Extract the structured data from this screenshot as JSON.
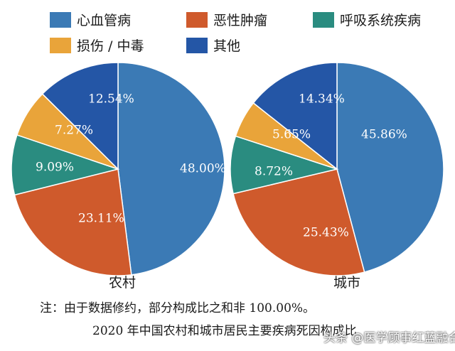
{
  "legend": [
    {
      "label": "心血管病",
      "color": "#3b7ab5"
    },
    {
      "label": "恶性肿瘤",
      "color": "#cf5a2c"
    },
    {
      "label": "呼吸系统疾病",
      "color": "#2a8c80"
    },
    {
      "label": "损伤 / 中毒",
      "color": "#e9a43a"
    },
    {
      "label": "其他",
      "color": "#2456a6"
    }
  ],
  "chart_data": [
    {
      "type": "pie",
      "title": "农村",
      "slices": [
        {
          "name": "心血管病",
          "value": 48.0,
          "label": "48.00%",
          "color": "#3b7ab5"
        },
        {
          "name": "恶性肿瘤",
          "value": 23.11,
          "label": "23.11%",
          "color": "#cf5a2c"
        },
        {
          "name": "呼吸系统疾病",
          "value": 9.09,
          "label": "9.09%",
          "color": "#2a8c80"
        },
        {
          "name": "损伤 / 中毒",
          "value": 7.27,
          "label": "7.27%",
          "color": "#e9a43a"
        },
        {
          "name": "其他",
          "value": 12.54,
          "label": "12.54%",
          "color": "#2456a6"
        }
      ]
    },
    {
      "type": "pie",
      "title": "城市",
      "slices": [
        {
          "name": "心血管病",
          "value": 45.86,
          "label": "45.86%",
          "color": "#3b7ab5"
        },
        {
          "name": "恶性肿瘤",
          "value": 25.43,
          "label": "25.43%",
          "color": "#cf5a2c"
        },
        {
          "name": "呼吸系统疾病",
          "value": 8.72,
          "label": "8.72%",
          "color": "#2a8c80"
        },
        {
          "name": "损伤 / 中毒",
          "value": 5.65,
          "label": "5.65%",
          "color": "#e9a43a"
        },
        {
          "name": "其他",
          "value": 14.34,
          "label": "14.34%",
          "color": "#2456a6"
        }
      ]
    }
  ],
  "note": "注：由于数据修约，部分构成比之和非 100.00%。",
  "caption": "2020 年中国农村和城市居民主要疾病死因构成比",
  "watermark": "头条 @医学顾事红蓝融合"
}
